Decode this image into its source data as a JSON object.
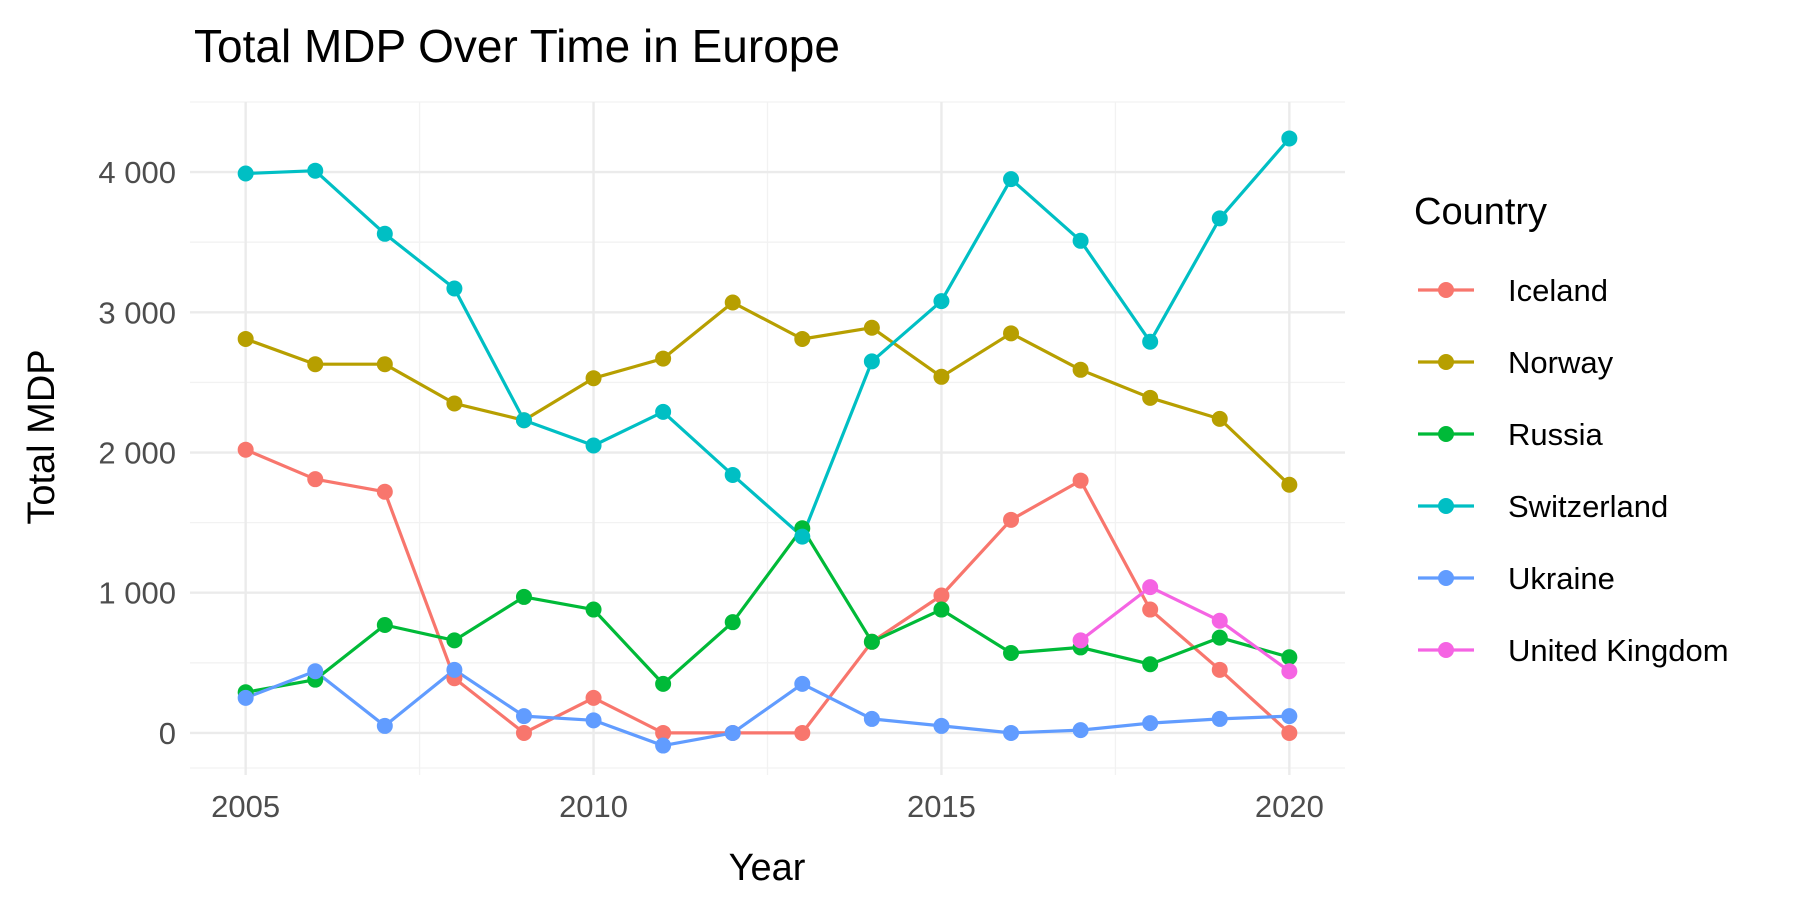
{
  "chart_data": {
    "type": "line",
    "title": "Total MDP Over Time in Europe",
    "xlabel": "Year",
    "ylabel": "Total MDP",
    "xlim": [
      2004.2,
      2020.8
    ],
    "ylim": [
      -300,
      4500
    ],
    "x_ticks": [
      2005,
      2010,
      2015,
      2020
    ],
    "x_tick_labels": [
      "2005",
      "2010",
      "2015",
      "2020"
    ],
    "y_ticks": [
      0,
      1000,
      2000,
      3000,
      4000
    ],
    "y_tick_labels": [
      "0",
      "1 000",
      "2 000",
      "3 000",
      "4 000"
    ],
    "grid": true,
    "legend": {
      "title": "Country",
      "position": "right"
    },
    "series": [
      {
        "name": "Iceland",
        "color": "#F8766D",
        "x": [
          2005,
          2006,
          2007,
          2008,
          2009,
          2010,
          2011,
          2012,
          2013,
          2014,
          2015,
          2016,
          2017,
          2018,
          2019,
          2020
        ],
        "values": [
          2020,
          1810,
          1720,
          390,
          0,
          250,
          0,
          0,
          0,
          650,
          980,
          1520,
          1800,
          880,
          450,
          0
        ]
      },
      {
        "name": "Norway",
        "color": "#B79F00",
        "x": [
          2005,
          2006,
          2007,
          2008,
          2009,
          2010,
          2011,
          2012,
          2013,
          2014,
          2015,
          2016,
          2017,
          2018,
          2019,
          2020
        ],
        "values": [
          2810,
          2630,
          2630,
          2350,
          2230,
          2530,
          2670,
          3070,
          2810,
          2890,
          2540,
          2850,
          2590,
          2390,
          2240,
          1770
        ]
      },
      {
        "name": "Russia",
        "color": "#00BA38",
        "x": [
          2005,
          2006,
          2007,
          2008,
          2009,
          2010,
          2011,
          2012,
          2013,
          2014,
          2015,
          2016,
          2017,
          2018,
          2019,
          2020
        ],
        "values": [
          290,
          380,
          770,
          660,
          970,
          880,
          350,
          790,
          1460,
          650,
          880,
          570,
          610,
          490,
          680,
          540
        ]
      },
      {
        "name": "Switzerland",
        "color": "#00BFC4",
        "x": [
          2005,
          2006,
          2007,
          2008,
          2009,
          2010,
          2011,
          2012,
          2013,
          2014,
          2015,
          2016,
          2017,
          2018,
          2019,
          2020
        ],
        "values": [
          3990,
          4010,
          3560,
          3170,
          2230,
          2050,
          2290,
          1840,
          1400,
          2650,
          3080,
          3950,
          3510,
          2790,
          3670,
          4240
        ]
      },
      {
        "name": "Ukraine",
        "color": "#619CFF",
        "x": [
          2005,
          2006,
          2007,
          2008,
          2009,
          2010,
          2011,
          2012,
          2013,
          2014,
          2015,
          2016,
          2017,
          2018,
          2019,
          2020
        ],
        "values": [
          250,
          440,
          50,
          450,
          120,
          90,
          -90,
          0,
          350,
          100,
          50,
          0,
          20,
          70,
          100,
          120
        ]
      },
      {
        "name": "United Kingdom",
        "color": "#F564E3",
        "x": [
          2017,
          2018,
          2019,
          2020
        ],
        "values": [
          660,
          1040,
          800,
          440
        ]
      }
    ]
  }
}
